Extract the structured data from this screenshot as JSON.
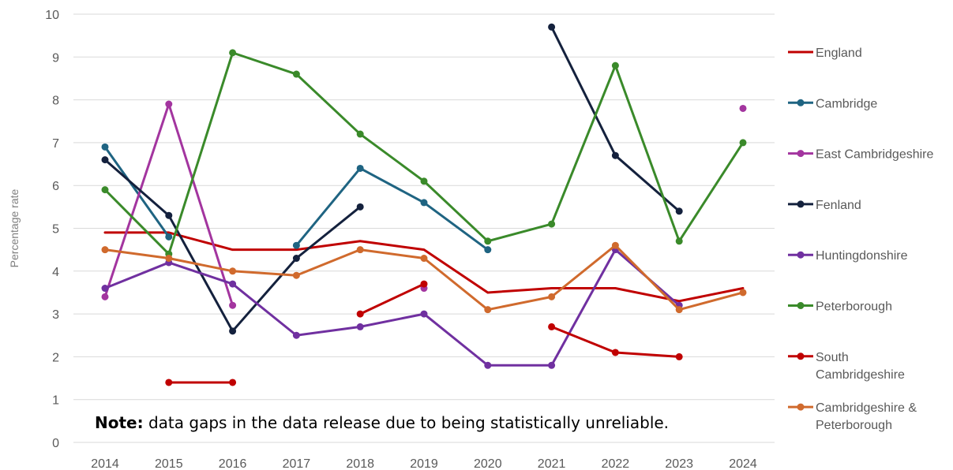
{
  "chart_data": {
    "type": "line",
    "ylabel": "Percentage rate",
    "xlabel": "",
    "ylim": [
      0,
      10
    ],
    "yticks": [
      0,
      1,
      2,
      3,
      4,
      5,
      6,
      7,
      8,
      9,
      10
    ],
    "categories": [
      "2014",
      "2015",
      "2016",
      "2017",
      "2018",
      "2019",
      "2020",
      "2021",
      "2022",
      "2023",
      "2024"
    ],
    "grid": "horizontal",
    "legend_position": "right",
    "note_bold": "Note:",
    "note_text": "data gaps in the data release due to being statistically unreliable.",
    "series": [
      {
        "name": "England",
        "color": "#c00000",
        "markers": false,
        "values": [
          4.9,
          4.9,
          4.5,
          4.5,
          4.7,
          4.5,
          3.5,
          3.6,
          3.6,
          3.3,
          3.6
        ]
      },
      {
        "name": "Cambridge",
        "color": "#1f6482",
        "markers": true,
        "values": [
          6.9,
          4.8,
          null,
          4.6,
          6.4,
          5.6,
          4.5,
          null,
          null,
          null,
          null
        ]
      },
      {
        "name": "East Cambridgeshire",
        "color": "#a3359f",
        "markers": true,
        "values": [
          3.4,
          7.9,
          3.2,
          null,
          null,
          3.6,
          null,
          null,
          null,
          null,
          7.8
        ]
      },
      {
        "name": "Fenland",
        "color": "#14213d",
        "markers": true,
        "values": [
          6.6,
          5.3,
          2.6,
          4.3,
          5.5,
          null,
          null,
          9.7,
          6.7,
          5.4,
          null
        ]
      },
      {
        "name": "Huntingdonshire",
        "color": "#7030a0",
        "markers": true,
        "values": [
          3.6,
          4.2,
          3.7,
          2.5,
          2.7,
          3.0,
          1.8,
          1.8,
          4.5,
          3.2,
          null
        ]
      },
      {
        "name": "Peterborough",
        "color": "#3a8a2a",
        "markers": true,
        "values": [
          5.9,
          4.4,
          9.1,
          8.6,
          7.2,
          6.1,
          4.7,
          5.1,
          8.8,
          4.7,
          7.0
        ]
      },
      {
        "name": "South Cambridgeshire",
        "legend_lines": [
          "South",
          "Cambridgeshire"
        ],
        "color": "#c00000",
        "markers": true,
        "values": [
          null,
          1.4,
          1.4,
          null,
          3.0,
          3.7,
          null,
          2.7,
          2.1,
          2.0,
          null
        ]
      },
      {
        "name": "Cambridgeshire & Peterborough",
        "legend_lines": [
          "Cambridgeshire &",
          "Peterborough"
        ],
        "color": "#d06a2d",
        "markers": true,
        "values": [
          4.5,
          4.3,
          4.0,
          3.9,
          4.5,
          4.3,
          3.1,
          3.4,
          4.6,
          3.1,
          3.5
        ]
      }
    ]
  }
}
